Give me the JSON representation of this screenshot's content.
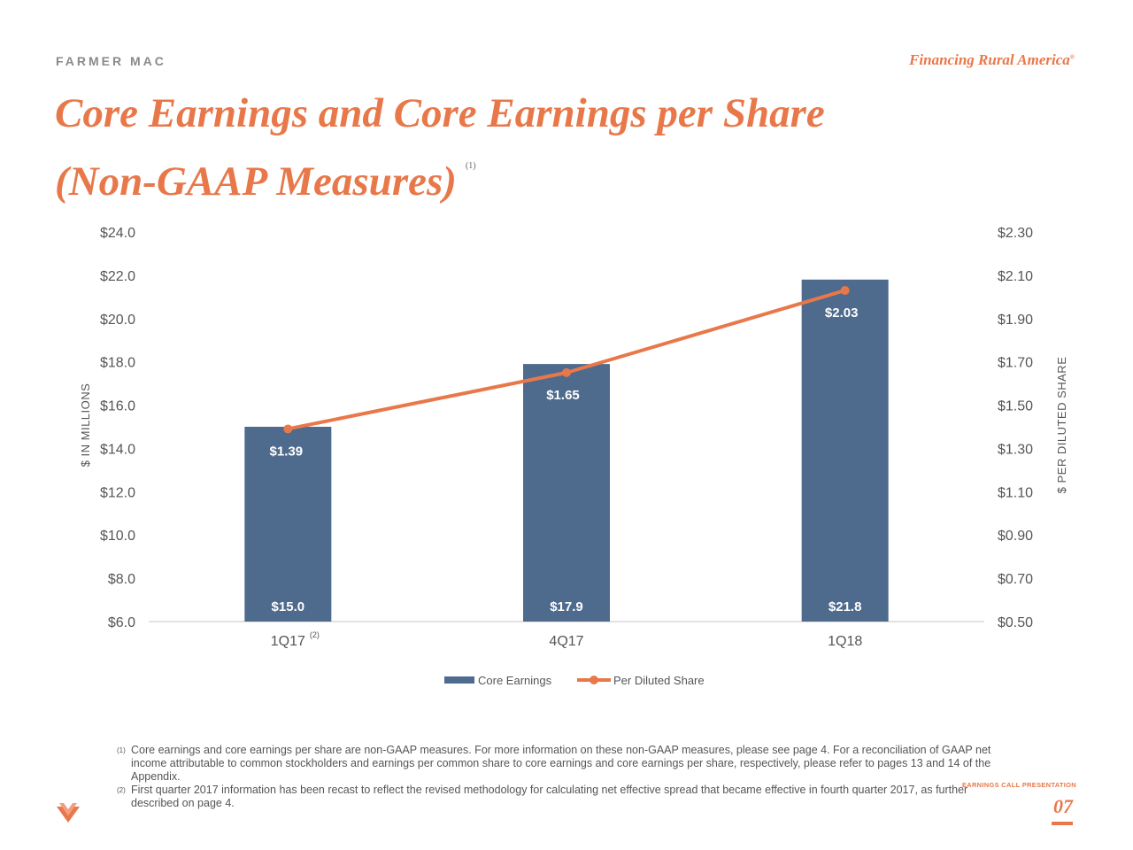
{
  "header": {
    "brand": "FARMER MAC",
    "tagline": "Financing Rural America",
    "tagline_mark": "®"
  },
  "title": {
    "line1": "Core Earnings and Core Earnings per Share",
    "line2": "(Non-GAAP Measures)",
    "footnote_ref": "(1)"
  },
  "chart_data": {
    "type": "bar+line",
    "categories": [
      "1Q17",
      "4Q17",
      "1Q18"
    ],
    "category_footnotes": [
      "(2)",
      "",
      ""
    ],
    "series": [
      {
        "name": "Core Earnings",
        "type": "bar",
        "axis": "left",
        "values": [
          15.0,
          17.9,
          21.8
        ],
        "labels": [
          "$15.0",
          "$17.9",
          "$21.8"
        ],
        "color": "#4e6a8d"
      },
      {
        "name": "Per Diluted Share",
        "type": "line",
        "axis": "right",
        "values": [
          1.39,
          1.65,
          2.03
        ],
        "labels": [
          "$1.39",
          "$1.65",
          "$2.03"
        ],
        "color": "#e8784a"
      }
    ],
    "y_left": {
      "label": "$ IN MILLIONS",
      "ylim": [
        6.0,
        24.0
      ],
      "ticks": [
        "$24.0",
        "$22.0",
        "$20.0",
        "$18.0",
        "$16.0",
        "$14.0",
        "$12.0",
        "$10.0",
        "$8.0",
        "$6.0"
      ]
    },
    "y_right": {
      "label": "$ PER DILUTED SHARE",
      "ylim": [
        0.5,
        2.3
      ],
      "ticks": [
        "$2.30",
        "$2.10",
        "$1.90",
        "$1.70",
        "$1.50",
        "$1.30",
        "$1.10",
        "$0.90",
        "$0.70",
        "$0.50"
      ]
    },
    "grid": false,
    "legend_position": "bottom"
  },
  "footnotes": [
    {
      "mark": "(1)",
      "text": "Core earnings and core earnings per share are non-GAAP measures. For more information on these non-GAAP measures, please see page 4.  For a reconciliation of GAAP net income attributable to common stockholders and earnings per common share to core earnings and core earnings per share, respectively, please refer to pages 13 and 14 of the Appendix."
    },
    {
      "mark": "(2)",
      "text": "First quarter 2017 information has been recast to reflect the revised methodology for calculating net effective spread that became effective in fourth quarter 2017, as further described on page 4."
    }
  ],
  "footer": {
    "presentation_label": "EARNINGS CALL PRESENTATION",
    "page_number": "07"
  },
  "colors": {
    "accent": "#e8784a",
    "bar": "#4e6a8d",
    "text": "#555555"
  }
}
